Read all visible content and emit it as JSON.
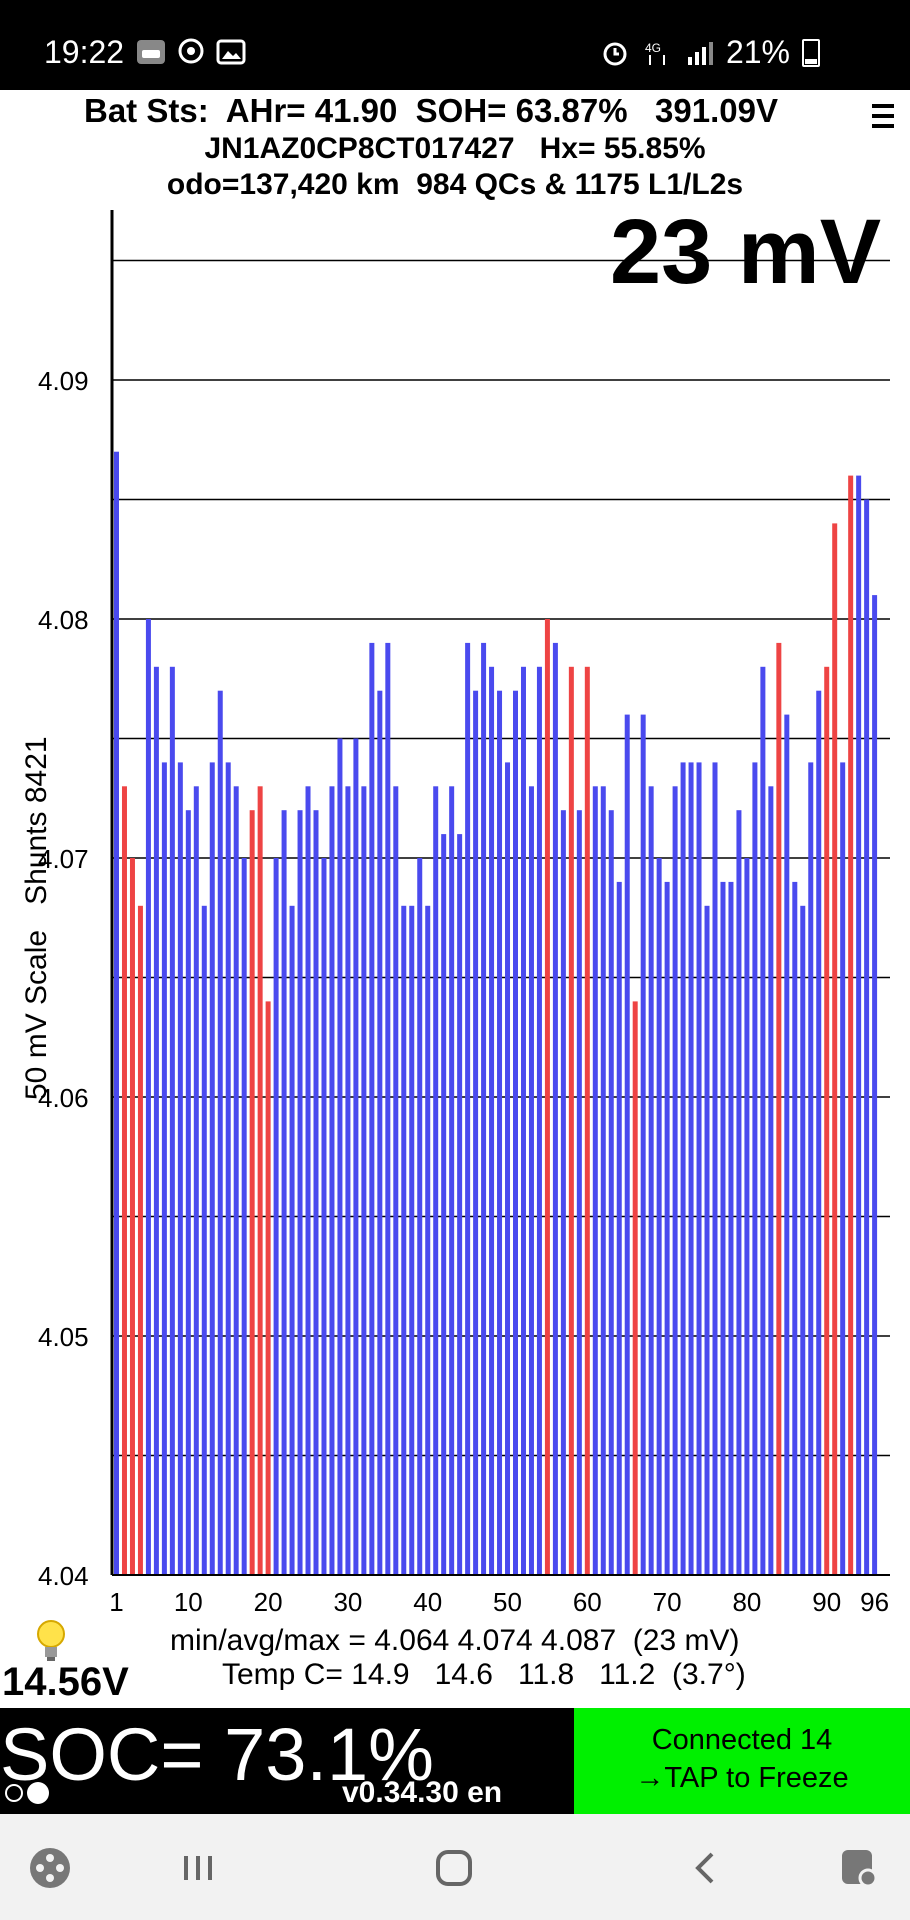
{
  "status_bar": {
    "time": "19:22",
    "left_icons": [
      "car-app-icon",
      "viber-icon",
      "gallery-icon"
    ],
    "right_icons": [
      "alarm-icon",
      "4g-icon",
      "signal-icon"
    ],
    "battery": "21%"
  },
  "header": {
    "line1": "Bat Sts:  AHr= 41.90  SOH= 63.87%   391.09V",
    "line2": "JN1AZ0CP8CT017427   Hx= 55.85%",
    "line3": "odo=137,420 km  984 QCs & 1175 L1/L2s"
  },
  "spread_mv": "23 mV",
  "y_axis_label": "50 mV Scale   Shunts 8421",
  "stats": {
    "minavgmax": "min/avg/max = 4.064 4.074 4.087  (23 mV)",
    "temp": "Temp C= 14.9   14.6   11.8   11.2  (3.7°)"
  },
  "pack_voltage": "14.56V",
  "soc": "SOC= 73.1%",
  "version": "v0.34.30 en",
  "connection": {
    "line1": "Connected 14",
    "line2": "→TAP to Freeze"
  },
  "nav": [
    "game-launcher-icon",
    "recents-icon",
    "home-icon",
    "back-icon",
    "accessibility-icon"
  ],
  "colors": {
    "normal_bar": "#4a4aee",
    "shunt_bar": "#ee4444",
    "soc_background": "#000000",
    "connect_background": "#00f000"
  },
  "chart_data": {
    "type": "bar",
    "ylim": [
      4.04,
      4.095
    ],
    "yticks": [
      4.04,
      4.05,
      4.06,
      4.07,
      4.08,
      4.09
    ],
    "ytick_labels": [
      "4.04",
      "4.05",
      "4.06",
      "4.07",
      "4.08",
      "4.09"
    ],
    "xtick_labels": [
      "1",
      "10",
      "20",
      "30",
      "40",
      "50",
      "60",
      "70",
      "80",
      "90",
      "96"
    ],
    "grid": "horizontal lines every 0.005",
    "x": [
      1,
      2,
      3,
      4,
      5,
      6,
      7,
      8,
      9,
      10,
      11,
      12,
      13,
      14,
      15,
      16,
      17,
      18,
      19,
      20,
      21,
      22,
      23,
      24,
      25,
      26,
      27,
      28,
      29,
      30,
      31,
      32,
      33,
      34,
      35,
      36,
      37,
      38,
      39,
      40,
      41,
      42,
      43,
      44,
      45,
      46,
      47,
      48,
      49,
      50,
      51,
      52,
      53,
      54,
      55,
      56,
      57,
      58,
      59,
      60,
      61,
      62,
      63,
      64,
      65,
      66,
      67,
      68,
      69,
      70,
      71,
      72,
      73,
      74,
      75,
      76,
      77,
      78,
      79,
      80,
      81,
      82,
      83,
      84,
      85,
      86,
      87,
      88,
      89,
      90,
      91,
      92,
      93,
      94,
      95,
      96
    ],
    "values": [
      4.087,
      4.073,
      4.07,
      4.068,
      4.08,
      4.078,
      4.074,
      4.078,
      4.074,
      4.072,
      4.073,
      4.068,
      4.074,
      4.077,
      4.074,
      4.073,
      4.07,
      4.072,
      4.073,
      4.064,
      4.07,
      4.072,
      4.068,
      4.072,
      4.073,
      4.072,
      4.07,
      4.073,
      4.075,
      4.073,
      4.075,
      4.073,
      4.079,
      4.077,
      4.079,
      4.073,
      4.068,
      4.068,
      4.07,
      4.068,
      4.073,
      4.071,
      4.073,
      4.071,
      4.079,
      4.077,
      4.079,
      4.078,
      4.077,
      4.074,
      4.077,
      4.078,
      4.073,
      4.078,
      4.08,
      4.079,
      4.072,
      4.078,
      4.072,
      4.078,
      4.073,
      4.073,
      4.072,
      4.069,
      4.076,
      4.064,
      4.076,
      4.073,
      4.07,
      4.069,
      4.073,
      4.074,
      4.074,
      4.074,
      4.068,
      4.074,
      4.069,
      4.069,
      4.072,
      4.07,
      4.074,
      4.078,
      4.073,
      4.079,
      4.076,
      4.069,
      4.068,
      4.074,
      4.077,
      4.078,
      4.084,
      4.074,
      4.086,
      4.086,
      4.085,
      4.081
    ],
    "shunted_cells": [
      2,
      3,
      4,
      18,
      19,
      20,
      55,
      58,
      60,
      66,
      84,
      90,
      91,
      93
    ]
  }
}
